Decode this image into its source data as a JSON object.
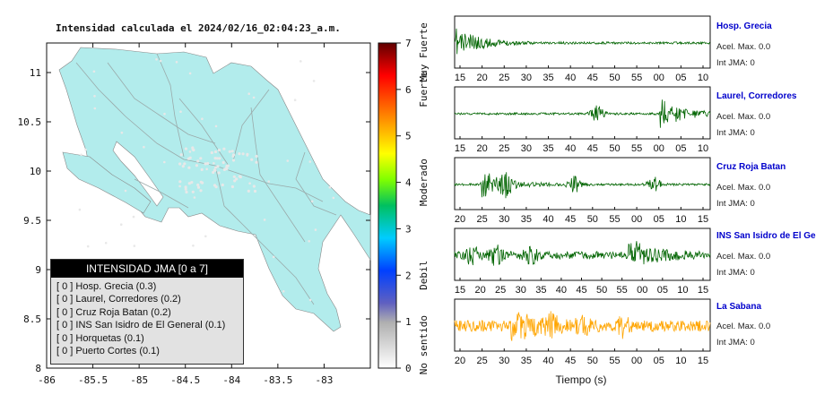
{
  "map": {
    "title": "Intensidad calculada el 2024/02/16_02:04:23_a.m.",
    "x_ticks": [
      "-86",
      "-85.5",
      "-85",
      "-84.5",
      "-84",
      "-83.5",
      "-83"
    ],
    "y_ticks": [
      "11",
      "10.5",
      "10",
      "9.5",
      "9",
      "8.5",
      "8"
    ],
    "xlim": [
      -86,
      -82.5
    ],
    "ylim": [
      8,
      11.3
    ],
    "land_color": "#b2ecec"
  },
  "colorbar": {
    "ticks": [
      "0",
      "1",
      "2",
      "3",
      "4",
      "5",
      "6",
      "7"
    ],
    "labels": [
      "No sentido",
      "Debil",
      "Moderado",
      "Fuerte",
      "Muy Fuerte"
    ]
  },
  "legend": {
    "title": "INTENSIDAD JMA [0 a 7]",
    "items": [
      {
        "jma": "[ 0 ]",
        "label": "Hosp. Grecia (0.3)"
      },
      {
        "jma": "[ 0 ]",
        "label": "Laurel, Corredores (0.2)"
      },
      {
        "jma": "[ 0 ]",
        "label": "Cruz Roja Batan (0.2)"
      },
      {
        "jma": "[ 0 ]",
        "label": "INS San Isidro de El General (0.1)"
      },
      {
        "jma": "[ 0 ]",
        "label": "Horquetas (0.1)"
      },
      {
        "jma": "[ 0 ]",
        "label": "Puerto Cortes (0.1)"
      }
    ]
  },
  "chart_data": [
    {
      "type": "heatmap",
      "title": "Intensidad calculada el 2024/02/16_02:04:23_a.m.",
      "xlim": [
        -86,
        -82.5
      ],
      "ylim": [
        8,
        11.3
      ],
      "x_ticks": [
        -86,
        -85.5,
        -85,
        -84.5,
        -84,
        -83.5,
        -83
      ],
      "y_ticks": [
        8,
        8.5,
        9,
        9.5,
        10,
        10.5,
        11
      ],
      "colorbar_range": [
        0,
        7
      ],
      "stations": [
        {
          "name": "Hosp. Grecia",
          "jma": 0,
          "value": 0.3
        },
        {
          "name": "Laurel, Corredores",
          "jma": 0,
          "value": 0.2
        },
        {
          "name": "Cruz Roja Batan",
          "jma": 0,
          "value": 0.2
        },
        {
          "name": "INS San Isidro de El General",
          "jma": 0,
          "value": 0.1
        },
        {
          "name": "Horquetas",
          "jma": 0,
          "value": 0.1
        },
        {
          "name": "Puerto Cortes",
          "jma": 0,
          "value": 0.1
        }
      ]
    },
    {
      "type": "line",
      "xlabel": "Tiempo (s)",
      "traces": [
        {
          "name": "Hosp. Grecia",
          "accel": "Acel. Max. 0.0",
          "jma": "Int JMA: 0",
          "color": "#006400",
          "ticks": [
            "15",
            "20",
            "25",
            "30",
            "35",
            "40",
            "45",
            "50",
            "55",
            "00",
            "05",
            "10"
          ],
          "onset": 0.0,
          "bursts": []
        },
        {
          "name": "Laurel, Corredores",
          "accel": "Acel. Max. 0.0",
          "jma": "Int JMA: 0",
          "color": "#006400",
          "ticks": [
            "15",
            "20",
            "25",
            "30",
            "35",
            "40",
            "45",
            "50",
            "55",
            "00",
            "05",
            "10"
          ],
          "onset": 0.8,
          "bursts": [
            0.56
          ]
        },
        {
          "name": "Cruz Roja Batan",
          "accel": "Acel. Max. 0.0",
          "jma": "Int JMA: 0",
          "color": "#006400",
          "ticks": [
            "20",
            "25",
            "30",
            "35",
            "40",
            "45",
            "50",
            "55",
            "00",
            "05",
            "10",
            "15"
          ],
          "onset": 0.1,
          "bursts": [
            0.2,
            0.47,
            0.78
          ]
        },
        {
          "name": "INS San Isidro de El Ge",
          "accel": "Acel. Max. 0.0",
          "jma": "Int JMA: 0",
          "color": "#006400",
          "ticks": [
            "15",
            "20",
            "25",
            "30",
            "35",
            "40",
            "45",
            "50",
            "55",
            "00",
            "05",
            "10",
            "15"
          ],
          "onset": 0.68,
          "bursts": [
            0.07,
            0.16,
            0.3
          ]
        },
        {
          "name": "La Sabana",
          "accel": "Acel. Max. 0.0",
          "jma": "Int JMA: 0",
          "color": "#ffa500",
          "ticks": [
            "20",
            "25",
            "30",
            "35",
            "40",
            "45",
            "50",
            "55",
            "00",
            "05",
            "10",
            "15"
          ],
          "onset": 0.22,
          "bursts": [
            0.38,
            0.5,
            0.66
          ]
        }
      ]
    }
  ]
}
